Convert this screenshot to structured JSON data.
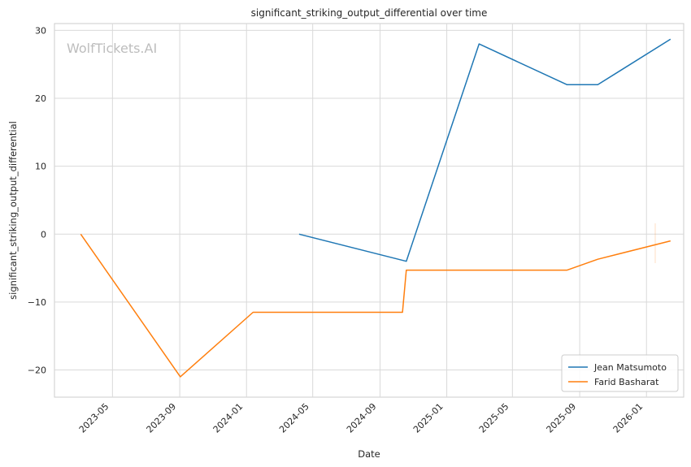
{
  "chart_data": {
    "type": "line",
    "title": "significant_striking_output_differential over time",
    "xlabel": "Date",
    "ylabel": "significant_striking_output_differential",
    "watermark": "WolfTickets.AI",
    "x_tick_labels": [
      "2023-05",
      "2023-09",
      "2024-01",
      "2024-05",
      "2024-09",
      "2025-01",
      "2025-05",
      "2025-09",
      "2026-01"
    ],
    "x_ticks": [
      "2023-05-01",
      "2023-09-01",
      "2024-01-01",
      "2024-05-01",
      "2024-09-01",
      "2025-01-01",
      "2025-05-01",
      "2025-09-01",
      "2026-01-01"
    ],
    "xlim": [
      "2023-01-15",
      "2026-03-10"
    ],
    "y_ticks": [
      -20,
      -10,
      0,
      10,
      20,
      30
    ],
    "ylim": [
      -24,
      31
    ],
    "grid": true,
    "legend_position": "lower-right",
    "series": [
      {
        "name": "Jean Matsumoto",
        "color": "#1f77b4",
        "x": [
          "2024-04-06",
          "2024-10-19",
          "2025-03-01",
          "2025-08-09",
          "2025-10-04",
          "2026-02-14"
        ],
        "y": [
          0,
          -4,
          28,
          22,
          22,
          28.7
        ]
      },
      {
        "name": "Farid Basharat",
        "color": "#ff7f0e",
        "x": [
          "2023-03-04",
          "2023-09-02",
          "2024-01-13",
          "2024-10-12",
          "2024-10-19",
          "2025-08-09",
          "2025-10-04",
          "2026-02-14"
        ],
        "y": [
          0,
          -21,
          -11.5,
          -11.5,
          -5.3,
          -5.3,
          -3.7,
          -1
        ]
      }
    ]
  }
}
